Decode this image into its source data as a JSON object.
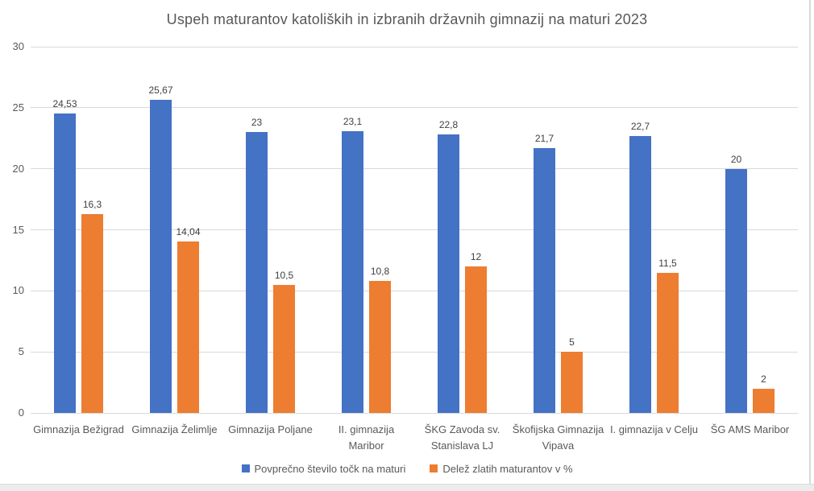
{
  "chart_data": {
    "type": "bar",
    "title": "Uspeh maturantov katoliških in izbranih državnih gimnazij na maturi 2023",
    "categories": [
      "Gimnazija Bežigrad",
      "Gimnazija Želimlje",
      "Gimnazija Poljane",
      "II. gimnazija\nMaribor",
      "ŠKG Zavoda sv.\nStanislava LJ",
      "Škofijska Gimnazija\nVipava",
      "I. gimnazija v Celju",
      "ŠG AMS Maribor"
    ],
    "series": [
      {
        "name": "Povprečno število točk na maturi",
        "color": "#4472C4",
        "values": [
          24.53,
          25.67,
          23,
          23.1,
          22.8,
          21.7,
          22.7,
          20
        ],
        "value_labels": [
          "24,53",
          "25,67",
          "23",
          "23,1",
          "22,8",
          "21,7",
          "22,7",
          "20"
        ]
      },
      {
        "name": "Delež zlatih maturantov v %",
        "color": "#ED7D31",
        "values": [
          16.3,
          14.04,
          10.5,
          10.8,
          12,
          5,
          11.5,
          2
        ],
        "value_labels": [
          "16,3",
          "14,04",
          "10,5",
          "10,8",
          "12",
          "5",
          "11,5",
          "2"
        ]
      }
    ],
    "y_ticks": [
      0,
      5,
      10,
      15,
      20,
      25,
      30
    ],
    "ylim": [
      0,
      30
    ],
    "xlabel": "",
    "ylabel": "",
    "grid": true,
    "legend_position": "bottom",
    "gridline_color": "#d9d9d9",
    "text_color": "#595959",
    "value_label_color": "#404040"
  }
}
